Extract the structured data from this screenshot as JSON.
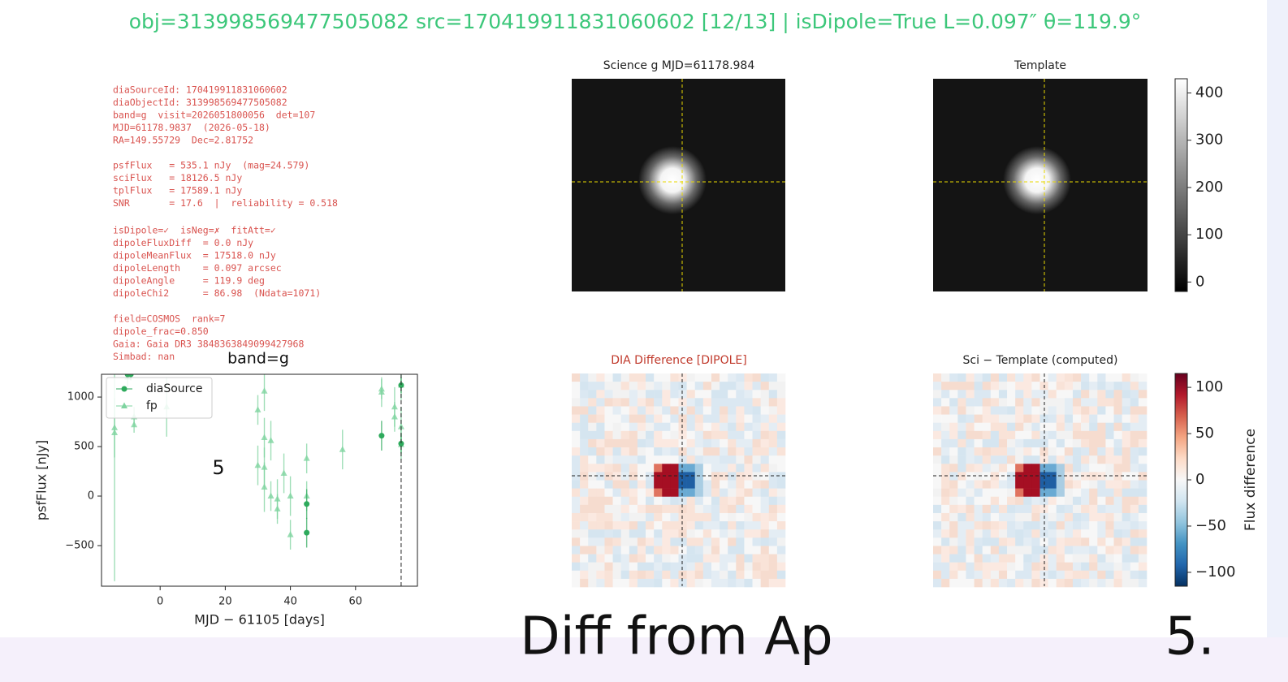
{
  "header": {
    "title": "obj=313998569477505082  src=170419911831060602  [12/13]  |  isDipole=True  L=0.097″  θ=119.9°"
  },
  "info_text": {
    "blocks": [
      [
        "diaSourceId: 170419911831060602",
        "diaObjectId: 313998569477505082",
        "band=g  visit=2026051800056  det=107",
        "MJD=61178.9837  (2026-05-18)",
        "RA=149.55729  Dec=2.81752"
      ],
      [
        "psfFlux   = 535.1 nJy  (mag=24.579)",
        "sciFlux   = 18126.5 nJy",
        "tplFlux   = 17589.1 nJy",
        "SNR       = 17.6  |  reliability = 0.518"
      ],
      [
        "isDipole=✓  isNeg=✗  fitAtt=✓",
        "dipoleFluxDiff  = 0.0 nJy",
        "dipoleMeanFlux  = 17518.0 nJy",
        "dipoleLength    = 0.097 arcsec",
        "dipoleAngle     = 119.9 deg",
        "dipoleChi2      = 86.98  (Ndata=1071)"
      ],
      [
        "field=COSMOS  rank=7",
        "dipole_frac=0.850",
        "Gaia: Gaia DR3 3848363849099427968",
        "Simbad: nan"
      ]
    ]
  },
  "panels": {
    "science": "Science  g  MJD=61178.984",
    "template": "Template",
    "difference": "DIA Difference  [DIPOLE]",
    "computed": "Sci − Template  (computed)"
  },
  "annotations": {
    "band": "band=g",
    "number": "5",
    "caption": "Diff from Ap",
    "page": "5."
  },
  "chart_data": [
    {
      "type": "errorbar",
      "xlabel": "MJD − 61105  [days]",
      "ylabel": "psfFlux [nJy]",
      "xlim": [
        -18,
        79
      ],
      "ylim": [
        -910,
        1230
      ],
      "xticks": [
        0,
        20,
        40,
        60
      ],
      "yticks": [
        {
          "value": -500,
          "label": "−500"
        },
        0,
        500,
        1000
      ],
      "vline": 74,
      "legend": "upper left",
      "series": [
        {
          "name": "diaSource",
          "color": "#2eaa5c",
          "marker": "circle",
          "x": [
            -10,
            -9,
            45,
            45,
            68,
            74,
            74
          ],
          "values": [
            1230,
            1230,
            -80,
            -370,
            610,
            1120,
            530
          ],
          "errors": [
            50,
            60,
            150,
            150,
            150,
            80,
            100
          ]
        },
        {
          "name": "fp",
          "color": "#7fd4a0",
          "marker": "triangle",
          "x": [
            -14,
            -14,
            -10,
            -8,
            -8,
            2,
            30,
            30,
            32,
            32,
            32,
            32,
            34,
            34,
            36,
            36,
            38,
            40,
            40,
            45,
            45,
            56,
            68,
            68,
            72,
            72,
            74,
            74,
            74
          ],
          "values": [
            690,
            640,
            1200,
            720,
            800,
            900,
            870,
            310,
            1060,
            590,
            290,
            90,
            560,
            0,
            -30,
            -130,
            230,
            0,
            -390,
            0,
            380,
            470,
            1050,
            1080,
            900,
            800,
            1120,
            700,
            520
          ],
          "errors": [
            300,
            1500,
            100,
            80,
            100,
            300,
            150,
            200,
            200,
            200,
            200,
            250,
            200,
            150,
            200,
            150,
            200,
            200,
            150,
            150,
            150,
            200,
            150,
            100,
            200,
            150,
            150,
            200,
            150
          ]
        }
      ]
    },
    {
      "type": "colorbar",
      "colormap": "gray",
      "ylim": [
        -20,
        430
      ],
      "yticks": [
        0,
        100,
        200,
        300,
        400
      ]
    },
    {
      "type": "colorbar",
      "colormap": "RdBu_r",
      "label": "Flux difference",
      "ylim": [
        -115,
        115
      ],
      "yticks": [
        100,
        50,
        0,
        {
          "value": -50,
          "label": "−50"
        },
        {
          "value": -100,
          "label": "−100"
        }
      ]
    }
  ]
}
